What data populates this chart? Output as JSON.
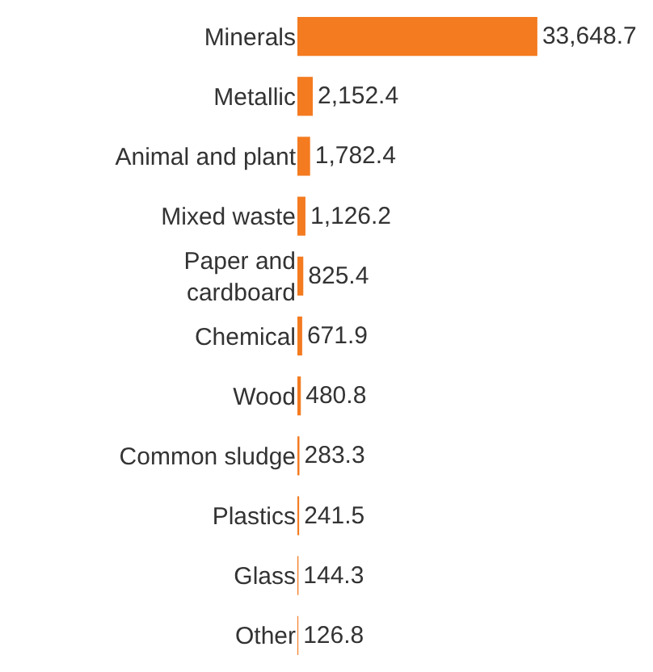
{
  "chart_data": {
    "type": "bar",
    "orientation": "horizontal",
    "categories": [
      "Minerals",
      "Metallic",
      "Animal and plant",
      "Mixed waste",
      "Paper and cardboard",
      "Chemical",
      "Wood",
      "Common sludge",
      "Plastics",
      "Glass",
      "Other"
    ],
    "values": [
      33648.7,
      2152.4,
      1782.4,
      1126.2,
      825.4,
      671.9,
      480.8,
      283.3,
      241.5,
      144.3,
      126.8
    ],
    "value_labels": [
      "33,648.7",
      "2,152.4",
      "1,782.4",
      "1,126.2",
      "825.4",
      "671.9",
      "480.8",
      "283.3",
      "241.5",
      "144.3",
      "126.8"
    ],
    "color": "#f47b20",
    "xlim": [
      0,
      34000
    ],
    "tick_labels": "y",
    "grid": false,
    "legend": false
  }
}
